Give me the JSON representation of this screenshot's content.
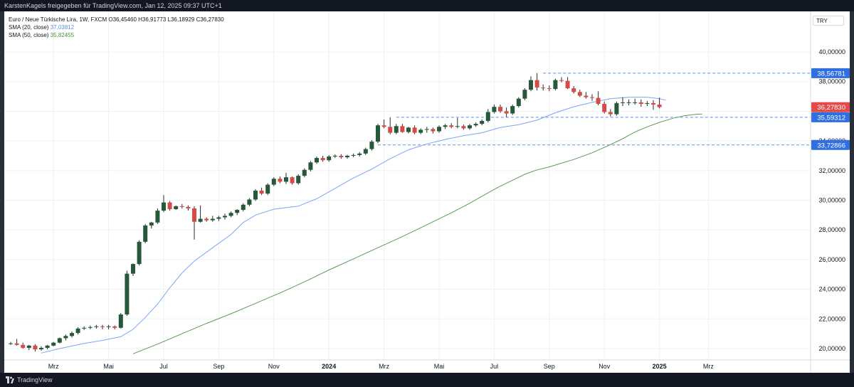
{
  "header": {
    "caption": "KarstenKagels freigegeben für TradingView.com, Jan 12, 2025 09:37 UTC+1"
  },
  "legend": {
    "symbol_line": "Euro  / Neue Türkische Lira, 1W, FXCM  O36,45460  H36,91773  L36,18929  C36,27830",
    "sma20_label": "SMA (20, close)",
    "sma20_value": "37,03812",
    "sma50_label": "SMA (50, close)",
    "sma50_value": "35,82455"
  },
  "unit": "TRY",
  "footer": {
    "brand": "TradingView"
  },
  "colors": {
    "up": "#26593a",
    "down": "#d84a45",
    "sma20": "#7aa6f0",
    "sma50": "#5e9a5a",
    "level_line": "#5b8def",
    "price_label": "#e34a4a",
    "level_label": "#2f6fe0"
  },
  "chart_data": {
    "type": "candlestick",
    "interval": "1W",
    "ylim": [
      19.6,
      41.0
    ],
    "y_ticks": [
      "20,00000",
      "22,00000",
      "24,00000",
      "26,00000",
      "28,00000",
      "30,00000",
      "32,00000",
      "34,00000",
      "36,00000",
      "38,00000",
      "40,00000"
    ],
    "y_tick_values": [
      20,
      22,
      24,
      26,
      28,
      30,
      32,
      34,
      36,
      38,
      40
    ],
    "x_ticks": [
      {
        "label": "Mrz",
        "week": 7
      },
      {
        "label": "Mai",
        "week": 16
      },
      {
        "label": "Jul",
        "week": 25
      },
      {
        "label": "Sep",
        "week": 34
      },
      {
        "label": "Nov",
        "week": 43
      },
      {
        "label": "2024",
        "week": 52,
        "bold": true
      },
      {
        "label": "Mrz",
        "week": 61
      },
      {
        "label": "Mai",
        "week": 70
      },
      {
        "label": "Jul",
        "week": 79
      },
      {
        "label": "Sep",
        "week": 88
      },
      {
        "label": "Nov",
        "week": 97
      },
      {
        "label": "2025",
        "week": 106,
        "bold": true
      },
      {
        "label": "Mrz",
        "week": 114
      }
    ],
    "ohlc": [
      [
        20.35,
        20.45,
        20.25,
        20.35
      ],
      [
        20.35,
        20.65,
        20.2,
        20.25
      ],
      [
        20.25,
        20.4,
        20.0,
        20.05
      ],
      [
        20.05,
        20.25,
        19.9,
        20.2
      ],
      [
        20.2,
        20.3,
        19.8,
        19.95
      ],
      [
        19.95,
        20.15,
        19.85,
        20.05
      ],
      [
        20.05,
        20.25,
        19.95,
        20.2
      ],
      [
        20.2,
        20.45,
        20.15,
        20.4
      ],
      [
        20.4,
        20.75,
        20.35,
        20.7
      ],
      [
        20.7,
        20.95,
        20.55,
        20.85
      ],
      [
        20.85,
        21.15,
        20.75,
        21.05
      ],
      [
        21.05,
        21.45,
        20.95,
        21.35
      ],
      [
        21.35,
        21.5,
        21.25,
        21.4
      ],
      [
        21.4,
        21.55,
        21.3,
        21.45
      ],
      [
        21.45,
        21.6,
        21.35,
        21.5
      ],
      [
        21.5,
        21.6,
        21.3,
        21.45
      ],
      [
        21.45,
        21.6,
        21.3,
        21.5
      ],
      [
        21.5,
        21.55,
        21.3,
        21.4
      ],
      [
        21.4,
        22.4,
        21.35,
        22.3
      ],
      [
        22.3,
        25.25,
        22.2,
        25.05
      ],
      [
        25.05,
        25.75,
        24.9,
        25.7
      ],
      [
        25.7,
        27.3,
        25.6,
        27.2
      ],
      [
        27.2,
        28.4,
        27.1,
        28.3
      ],
      [
        28.3,
        28.55,
        28.1,
        28.5
      ],
      [
        28.5,
        29.45,
        28.4,
        29.3
      ],
      [
        29.3,
        30.35,
        29.2,
        29.85
      ],
      [
        29.85,
        29.95,
        29.3,
        29.4
      ],
      [
        29.4,
        29.65,
        29.35,
        29.6
      ],
      [
        29.6,
        29.75,
        29.45,
        29.55
      ],
      [
        29.55,
        29.65,
        29.3,
        29.45
      ],
      [
        29.45,
        29.6,
        27.35,
        28.55
      ],
      [
        28.55,
        29.65,
        28.5,
        28.75
      ],
      [
        28.75,
        28.85,
        28.55,
        28.65
      ],
      [
        28.65,
        28.95,
        28.55,
        28.75
      ],
      [
        28.75,
        28.95,
        28.6,
        28.85
      ],
      [
        28.85,
        29.1,
        28.7,
        28.95
      ],
      [
        28.95,
        29.25,
        28.85,
        29.15
      ],
      [
        29.15,
        29.4,
        29.0,
        29.35
      ],
      [
        29.35,
        29.8,
        29.25,
        29.7
      ],
      [
        29.7,
        30.15,
        29.6,
        30.05
      ],
      [
        30.05,
        30.75,
        29.95,
        30.65
      ],
      [
        30.65,
        30.85,
        30.35,
        30.45
      ],
      [
        30.45,
        31.15,
        30.35,
        31.05
      ],
      [
        31.05,
        31.55,
        30.95,
        31.45
      ],
      [
        31.45,
        31.6,
        31.15,
        31.25
      ],
      [
        31.25,
        31.85,
        31.1,
        31.55
      ],
      [
        31.55,
        31.6,
        31.05,
        31.15
      ],
      [
        31.15,
        31.75,
        31.05,
        31.65
      ],
      [
        31.65,
        32.15,
        31.55,
        32.05
      ],
      [
        32.05,
        32.65,
        31.95,
        32.55
      ],
      [
        32.55,
        32.95,
        32.45,
        32.85
      ],
      [
        32.85,
        33.0,
        32.6,
        32.7
      ],
      [
        32.7,
        33.05,
        32.6,
        32.95
      ],
      [
        32.95,
        33.1,
        32.85,
        33.0
      ],
      [
        33.0,
        33.1,
        32.8,
        32.9
      ],
      [
        32.9,
        33.05,
        32.8,
        33.0
      ],
      [
        33.0,
        33.15,
        32.9,
        33.05
      ],
      [
        33.05,
        33.25,
        32.95,
        33.15
      ],
      [
        33.15,
        33.55,
        33.05,
        33.45
      ],
      [
        33.45,
        34.05,
        33.35,
        33.95
      ],
      [
        33.95,
        35.15,
        33.85,
        35.05
      ],
      [
        35.05,
        35.45,
        34.85,
        34.95
      ],
      [
        34.95,
        35.6,
        34.45,
        34.55
      ],
      [
        34.55,
        35.15,
        34.45,
        35.0
      ],
      [
        35.0,
        35.15,
        34.55,
        34.6
      ],
      [
        34.6,
        34.95,
        34.5,
        34.9
      ],
      [
        34.9,
        35.05,
        34.45,
        34.55
      ],
      [
        34.55,
        34.85,
        34.45,
        34.75
      ],
      [
        34.75,
        34.95,
        34.55,
        34.8
      ],
      [
        34.8,
        34.9,
        34.5,
        34.65
      ],
      [
        34.65,
        35.05,
        34.55,
        34.95
      ],
      [
        34.95,
        35.15,
        34.8,
        35.05
      ],
      [
        35.05,
        35.2,
        34.85,
        34.95
      ],
      [
        34.95,
        35.55,
        34.85,
        35.0
      ],
      [
        35.0,
        35.1,
        34.75,
        34.85
      ],
      [
        34.85,
        35.15,
        34.75,
        35.05
      ],
      [
        35.05,
        35.25,
        34.95,
        35.15
      ],
      [
        35.15,
        35.45,
        35.05,
        35.35
      ],
      [
        35.35,
        36.15,
        35.25,
        35.95
      ],
      [
        35.95,
        36.45,
        35.85,
        36.3
      ],
      [
        36.3,
        36.45,
        35.9,
        36.0
      ],
      [
        36.0,
        36.25,
        35.6,
        35.85
      ],
      [
        35.85,
        36.45,
        35.75,
        36.35
      ],
      [
        36.35,
        36.95,
        36.25,
        36.85
      ],
      [
        36.85,
        37.55,
        36.75,
        37.45
      ],
      [
        37.45,
        38.35,
        37.35,
        38.1
      ],
      [
        38.1,
        38.57,
        37.4,
        37.6
      ],
      [
        37.6,
        37.8,
        37.4,
        37.55
      ],
      [
        37.55,
        37.75,
        37.35,
        37.5
      ],
      [
        37.5,
        38.2,
        37.4,
        38.1
      ],
      [
        38.1,
        38.3,
        37.95,
        38.05
      ],
      [
        38.05,
        38.3,
        37.5,
        37.55
      ],
      [
        37.55,
        37.7,
        37.2,
        37.3
      ],
      [
        37.3,
        37.45,
        36.95,
        37.05
      ],
      [
        37.05,
        37.3,
        36.85,
        36.95
      ],
      [
        36.95,
        37.15,
        36.7,
        36.9
      ],
      [
        36.9,
        37.35,
        36.4,
        36.5
      ],
      [
        36.5,
        36.65,
        35.85,
        35.95
      ],
      [
        35.95,
        36.15,
        35.65,
        35.8
      ],
      [
        35.8,
        36.65,
        35.7,
        36.55
      ],
      [
        36.55,
        36.95,
        36.35,
        36.6
      ],
      [
        36.6,
        36.8,
        36.4,
        36.6
      ],
      [
        36.6,
        36.85,
        36.45,
        36.6
      ],
      [
        36.6,
        36.8,
        36.3,
        36.5
      ],
      [
        36.5,
        36.7,
        36.35,
        36.55
      ],
      [
        36.55,
        36.75,
        36.1,
        36.45
      ],
      [
        36.45,
        36.92,
        36.19,
        36.28
      ]
    ],
    "sma20": [
      [
        5,
        19.7
      ],
      [
        8,
        20.0
      ],
      [
        12,
        20.35
      ],
      [
        15,
        20.55
      ],
      [
        18,
        20.8
      ],
      [
        20,
        21.3
      ],
      [
        22,
        22.1
      ],
      [
        24,
        23.0
      ],
      [
        26,
        24.1
      ],
      [
        28,
        25.1
      ],
      [
        30,
        25.9
      ],
      [
        33,
        26.8
      ],
      [
        36,
        27.7
      ],
      [
        38,
        28.5
      ],
      [
        40,
        29.0
      ],
      [
        43,
        29.4
      ],
      [
        47,
        29.6
      ],
      [
        50,
        30.1
      ],
      [
        53,
        30.8
      ],
      [
        56,
        31.5
      ],
      [
        59,
        32.1
      ],
      [
        62,
        32.8
      ],
      [
        65,
        33.4
      ],
      [
        68,
        33.8
      ],
      [
        71,
        34.1
      ],
      [
        74,
        34.35
      ],
      [
        77,
        34.55
      ],
      [
        80,
        34.9
      ],
      [
        83,
        35.1
      ],
      [
        86,
        35.4
      ],
      [
        89,
        35.9
      ],
      [
        92,
        36.3
      ],
      [
        95,
        36.6
      ],
      [
        98,
        36.85
      ],
      [
        101,
        36.95
      ],
      [
        104,
        36.95
      ],
      [
        106,
        36.85
      ],
      [
        107,
        36.75
      ]
    ],
    "sma50": [
      [
        20,
        19.65
      ],
      [
        24,
        20.3
      ],
      [
        28,
        21.0
      ],
      [
        32,
        21.7
      ],
      [
        36,
        22.35
      ],
      [
        40,
        23.05
      ],
      [
        44,
        23.75
      ],
      [
        48,
        24.5
      ],
      [
        52,
        25.3
      ],
      [
        56,
        26.05
      ],
      [
        60,
        26.8
      ],
      [
        64,
        27.55
      ],
      [
        68,
        28.35
      ],
      [
        72,
        29.15
      ],
      [
        75,
        29.8
      ],
      [
        78,
        30.5
      ],
      [
        80,
        30.95
      ],
      [
        82,
        31.35
      ],
      [
        84,
        31.75
      ],
      [
        86,
        32.05
      ],
      [
        88,
        32.25
      ],
      [
        90,
        32.5
      ],
      [
        92,
        32.75
      ],
      [
        95,
        33.2
      ],
      [
        98,
        33.75
      ],
      [
        100,
        34.15
      ],
      [
        102,
        34.6
      ],
      [
        104,
        34.95
      ],
      [
        106,
        35.25
      ],
      [
        108,
        35.5
      ],
      [
        110,
        35.7
      ],
      [
        112,
        35.8
      ],
      [
        113,
        35.82
      ]
    ],
    "levels": [
      {
        "value": 38.56781,
        "label": "38,56781",
        "from_week": 87
      },
      {
        "value": 35.59312,
        "label": "35,59312",
        "from_week": 63
      },
      {
        "value": 33.72866,
        "label": "33,72866",
        "from_week": 60
      }
    ],
    "last_price": {
      "value": 36.2783,
      "label": "36,27830"
    },
    "sma20_last": 37.03812,
    "sma50_last": 35.82455
  }
}
